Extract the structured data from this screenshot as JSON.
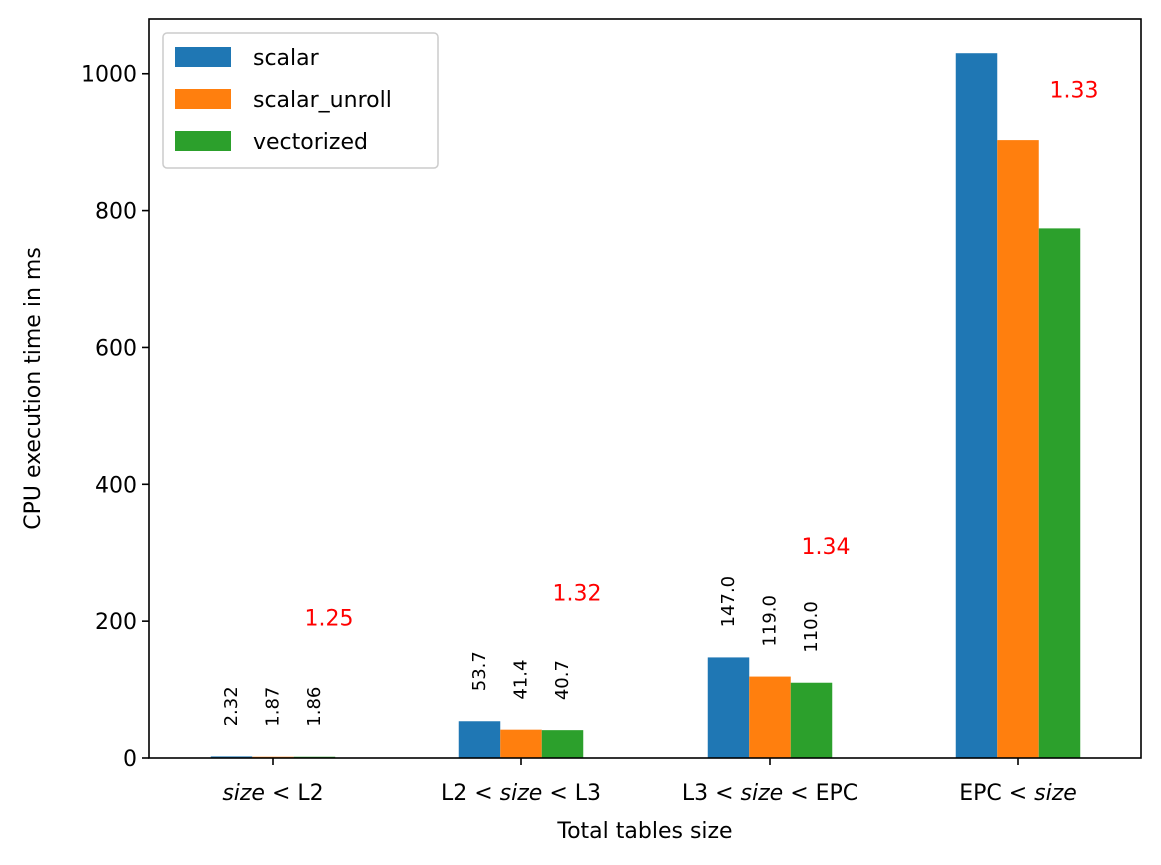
{
  "chart_data": {
    "type": "bar",
    "title": "",
    "xlabel": "Total tables size",
    "ylabel": "CPU execution time in ms",
    "ylim": [
      0,
      1080
    ],
    "yticks": [
      0,
      200,
      400,
      600,
      800,
      1000
    ],
    "grid": false,
    "legend_position": "top-left",
    "categories": [
      [
        {
          "text": "size",
          "italic": true
        },
        {
          "text": " < L2",
          "italic": false
        }
      ],
      [
        {
          "text": "L2 < ",
          "italic": false
        },
        {
          "text": "size",
          "italic": true
        },
        {
          "text": " < L3",
          "italic": false
        }
      ],
      [
        {
          "text": "L3 < ",
          "italic": false
        },
        {
          "text": "size",
          "italic": true
        },
        {
          "text": " < EPC",
          "italic": false
        }
      ],
      [
        {
          "text": "EPC < ",
          "italic": false
        },
        {
          "text": "size",
          "italic": true
        }
      ]
    ],
    "series": [
      {
        "name": "scalar",
        "color": "#1f77b4",
        "values": [
          2.32,
          53.7,
          147.0,
          1030
        ],
        "labels": [
          "2.32",
          "53.7",
          "147.0",
          ""
        ]
      },
      {
        "name": "scalar_unroll",
        "color": "#ff7f0e",
        "values": [
          1.87,
          41.4,
          119.0,
          903
        ],
        "labels": [
          "1.87",
          "41.4",
          "119.0",
          ""
        ]
      },
      {
        "name": "vectorized",
        "color": "#2ca02c",
        "values": [
          1.86,
          40.7,
          110.0,
          774
        ],
        "labels": [
          "1.86",
          "40.7",
          "110.0",
          ""
        ]
      }
    ],
    "speedup_annotations": {
      "color": "#ff0000",
      "labels": [
        "1.25",
        "1.32",
        "1.34",
        "1.33"
      ],
      "y_values": [
        205,
        242,
        310,
        977
      ]
    }
  }
}
